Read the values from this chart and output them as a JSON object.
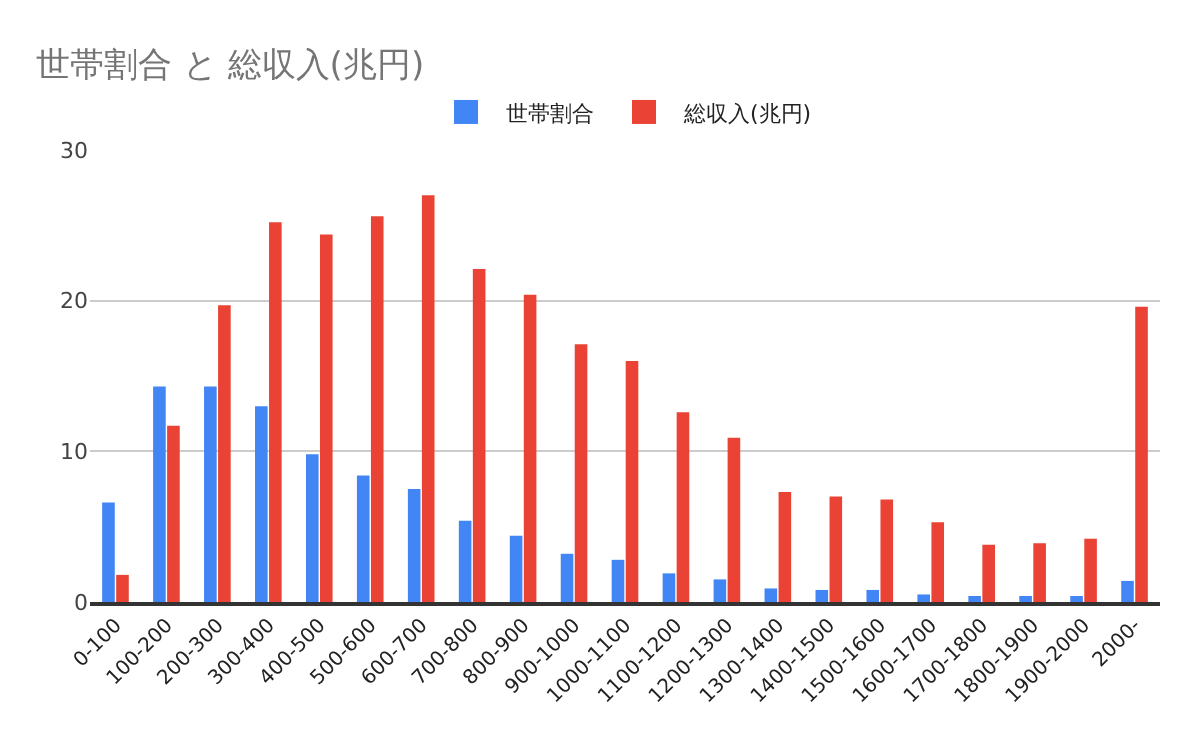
{
  "chart_data": {
    "type": "bar",
    "title": "世帯割合 と 総収入(兆円)",
    "categories": [
      "0-100",
      "100-200",
      "200-300",
      "300-400",
      "400-500",
      "500-600",
      "600-700",
      "700-800",
      "800-900",
      "900-1000",
      "1000-1100",
      "1100-1200",
      "1200-1300",
      "1300-1400",
      "1400-1500",
      "1500-1600",
      "1600-1700",
      "1700-1800",
      "1800-1900",
      "1900-2000",
      "2000-"
    ],
    "series": [
      {
        "name": "世帯割合",
        "color": "#4285f4",
        "values": [
          6.6,
          14.3,
          14.3,
          13.0,
          9.8,
          8.4,
          7.5,
          5.4,
          4.4,
          3.2,
          2.8,
          1.9,
          1.5,
          0.9,
          0.8,
          0.8,
          0.5,
          0.4,
          0.4,
          0.4,
          1.4
        ]
      },
      {
        "name": "総収入(兆円)",
        "color": "#ea4335",
        "values": [
          1.8,
          11.7,
          19.7,
          25.2,
          24.4,
          25.6,
          27.0,
          22.1,
          20.4,
          17.1,
          16.0,
          12.6,
          10.9,
          7.3,
          7.0,
          6.8,
          5.3,
          3.8,
          3.9,
          4.2,
          19.6
        ]
      }
    ],
    "ylim": [
      0,
      30
    ],
    "yticks": [
      0,
      10,
      20,
      30
    ],
    "grid": "y",
    "legend": "top"
  }
}
